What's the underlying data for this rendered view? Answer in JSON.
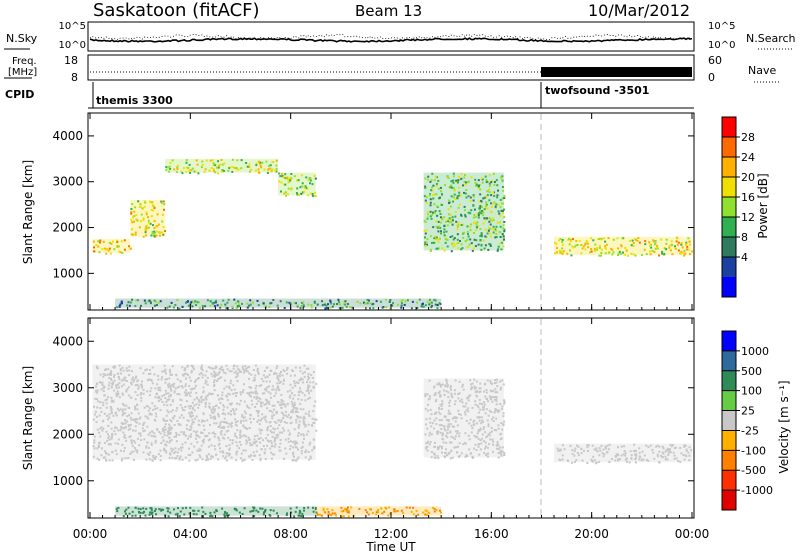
{
  "header": {
    "title": "Saskatoon (fitACF)",
    "beam": "Beam 13",
    "date": "10/Mar/2012"
  },
  "noise_panel": {
    "left_label": "N.Sky",
    "left_ticks": [
      "10^5",
      "10^0"
    ],
    "right_label": "N.Search",
    "right_ticks": [
      "10^5",
      "10^0"
    ]
  },
  "freq_panel": {
    "left_label_1": "Freq.",
    "left_label_2": "[MHz]",
    "left_ticks": [
      "18",
      "8"
    ],
    "right_label": "Nave",
    "right_ticks": [
      "60",
      "0"
    ]
  },
  "cpid_panel": {
    "label": "CPID",
    "modes": [
      "themis 3300",
      "twofsound -3501"
    ]
  },
  "axes": {
    "ylabel": "Slant Range [km]",
    "xlabel": "Time UT",
    "yticks": [
      "4000",
      "3000",
      "2000",
      "1000"
    ],
    "xticks": [
      "00:00",
      "04:00",
      "08:00",
      "12:00",
      "16:00",
      "20:00",
      "00:00"
    ]
  },
  "power_scale": {
    "label": "Power [dB]",
    "ticks": [
      "28",
      "24",
      "20",
      "16",
      "12",
      "8",
      "4"
    ],
    "colors": [
      "#ff0000",
      "#ff6a00",
      "#ffb000",
      "#f0e000",
      "#90e030",
      "#30b050",
      "#307a60",
      "#1a40a0",
      "#0000ff"
    ]
  },
  "velocity_scale": {
    "label": "Velocity [m s⁻¹]",
    "ticks": [
      "1000",
      "500",
      "100",
      "25",
      "-25",
      "-100",
      "-500",
      "-1000"
    ],
    "colors": [
      "#0000ff",
      "#2e6a9e",
      "#2e8b57",
      "#66cc44",
      "#c8c8c8",
      "#ffb000",
      "#ff7f00",
      "#ff3000",
      "#e00000"
    ]
  },
  "chart_data": {
    "type": "heatmap",
    "x_unit": "hours UT",
    "xlim": [
      0,
      24
    ],
    "ylim": [
      200,
      4500
    ],
    "mode_change_time": 18,
    "power_echoes": [
      {
        "t0": 0.1,
        "t1": 1.6,
        "r0": 1450,
        "r1": 1750,
        "power": 22
      },
      {
        "t0": 1.6,
        "t1": 3.0,
        "r0": 1800,
        "r1": 2600,
        "power": 20
      },
      {
        "t0": 3.0,
        "t1": 7.5,
        "r0": 3200,
        "r1": 3500,
        "power": 18
      },
      {
        "t0": 7.5,
        "t1": 9.0,
        "r0": 2700,
        "r1": 3200,
        "power": 16
      },
      {
        "t0": 13.3,
        "t1": 16.5,
        "r0": 1500,
        "r1": 3200,
        "power": 14
      },
      {
        "t0": 18.5,
        "t1": 24.0,
        "r0": 1400,
        "r1": 1800,
        "power": 20
      },
      {
        "t0": 1.0,
        "t1": 14.0,
        "r0": 250,
        "r1": 450,
        "power": 10
      }
    ],
    "velocity_echoes": [
      {
        "t0": 0.1,
        "t1": 9.0,
        "r0": 1450,
        "r1": 3500,
        "velocity": 0
      },
      {
        "t0": 13.3,
        "t1": 16.5,
        "r0": 1500,
        "r1": 3200,
        "velocity": 0
      },
      {
        "t0": 18.5,
        "t1": 24.0,
        "r0": 1400,
        "r1": 1800,
        "velocity": 0
      },
      {
        "t0": 1.0,
        "t1": 9.0,
        "r0": 250,
        "r1": 450,
        "velocity": 150
      },
      {
        "t0": 9.0,
        "t1": 14.0,
        "r0": 250,
        "r1": 450,
        "velocity": -100
      }
    ]
  }
}
